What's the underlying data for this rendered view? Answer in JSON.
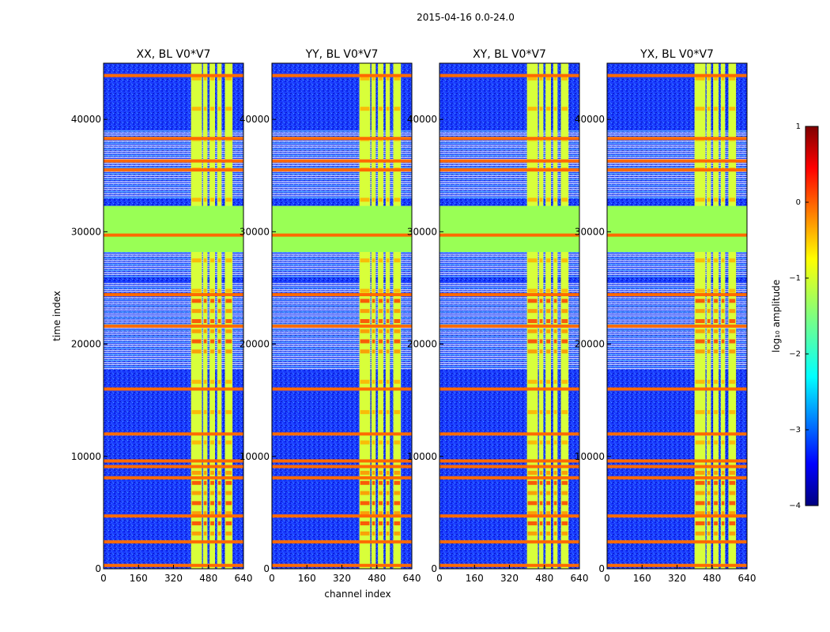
{
  "figure": {
    "suptitle": "2015-04-16 0.0-24.0"
  },
  "chart_data": [
    {
      "type": "heatmap",
      "title": "XX, BL V0*V7",
      "xlabel": "",
      "ylabel": "time index",
      "xlim": [
        0,
        640
      ],
      "ylim": [
        0,
        45000
      ],
      "xticks": [
        "0",
        "160",
        "320",
        "480",
        "640"
      ],
      "yticks": [
        "0",
        "10000",
        "20000",
        "30000",
        "40000"
      ]
    },
    {
      "type": "heatmap",
      "title": "YY, BL V0*V7",
      "xlabel": "channel index",
      "ylabel": "",
      "xlim": [
        0,
        640
      ],
      "ylim": [
        0,
        45000
      ],
      "xticks": [
        "0",
        "160",
        "320",
        "480",
        "640"
      ],
      "yticks": [
        "0",
        "10000",
        "20000",
        "30000",
        "40000"
      ]
    },
    {
      "type": "heatmap",
      "title": "XY, BL V0*V7",
      "xlabel": "",
      "ylabel": "",
      "xlim": [
        0,
        640
      ],
      "ylim": [
        0,
        45000
      ],
      "xticks": [
        "0",
        "160",
        "320",
        "480",
        "640"
      ],
      "yticks": [
        "0",
        "10000",
        "20000",
        "30000",
        "40000"
      ]
    },
    {
      "type": "heatmap",
      "title": "YX, BL V0*V7",
      "xlabel": "",
      "ylabel": "",
      "xlim": [
        0,
        640
      ],
      "ylim": [
        0,
        45000
      ],
      "xticks": [
        "0",
        "160",
        "320",
        "480",
        "640"
      ],
      "yticks": [
        "0",
        "10000",
        "20000",
        "30000",
        "40000"
      ]
    }
  ],
  "shared": {
    "bright_band_channels": [
      [
        400,
        450
      ],
      [
        455,
        475
      ],
      [
        485,
        510
      ],
      [
        520,
        540
      ],
      [
        555,
        590
      ]
    ],
    "flagged_time_block": [
      28200,
      32300
    ],
    "orange_rows": [
      300,
      2400,
      4700,
      8100,
      9100,
      9600,
      12000,
      16000,
      21600,
      24400,
      29700,
      35500,
      36300,
      38300,
      43900
    ],
    "dense_rfi_ranges": [
      [
        17800,
        25500
      ],
      [
        26000,
        29800
      ],
      [
        33000,
        39000
      ]
    ]
  },
  "colorbar": {
    "label": "log₁₀ amplitude",
    "min": -4,
    "max": 1,
    "ticks": [
      "1",
      "0",
      "−1",
      "−2",
      "−3",
      "−4"
    ],
    "colormap": "jet",
    "colors": [
      "#00007f",
      "#0000ff",
      "#007fff",
      "#00ffff",
      "#7fff7f",
      "#ffff00",
      "#ff7f00",
      "#ff0000",
      "#7f0000"
    ]
  }
}
